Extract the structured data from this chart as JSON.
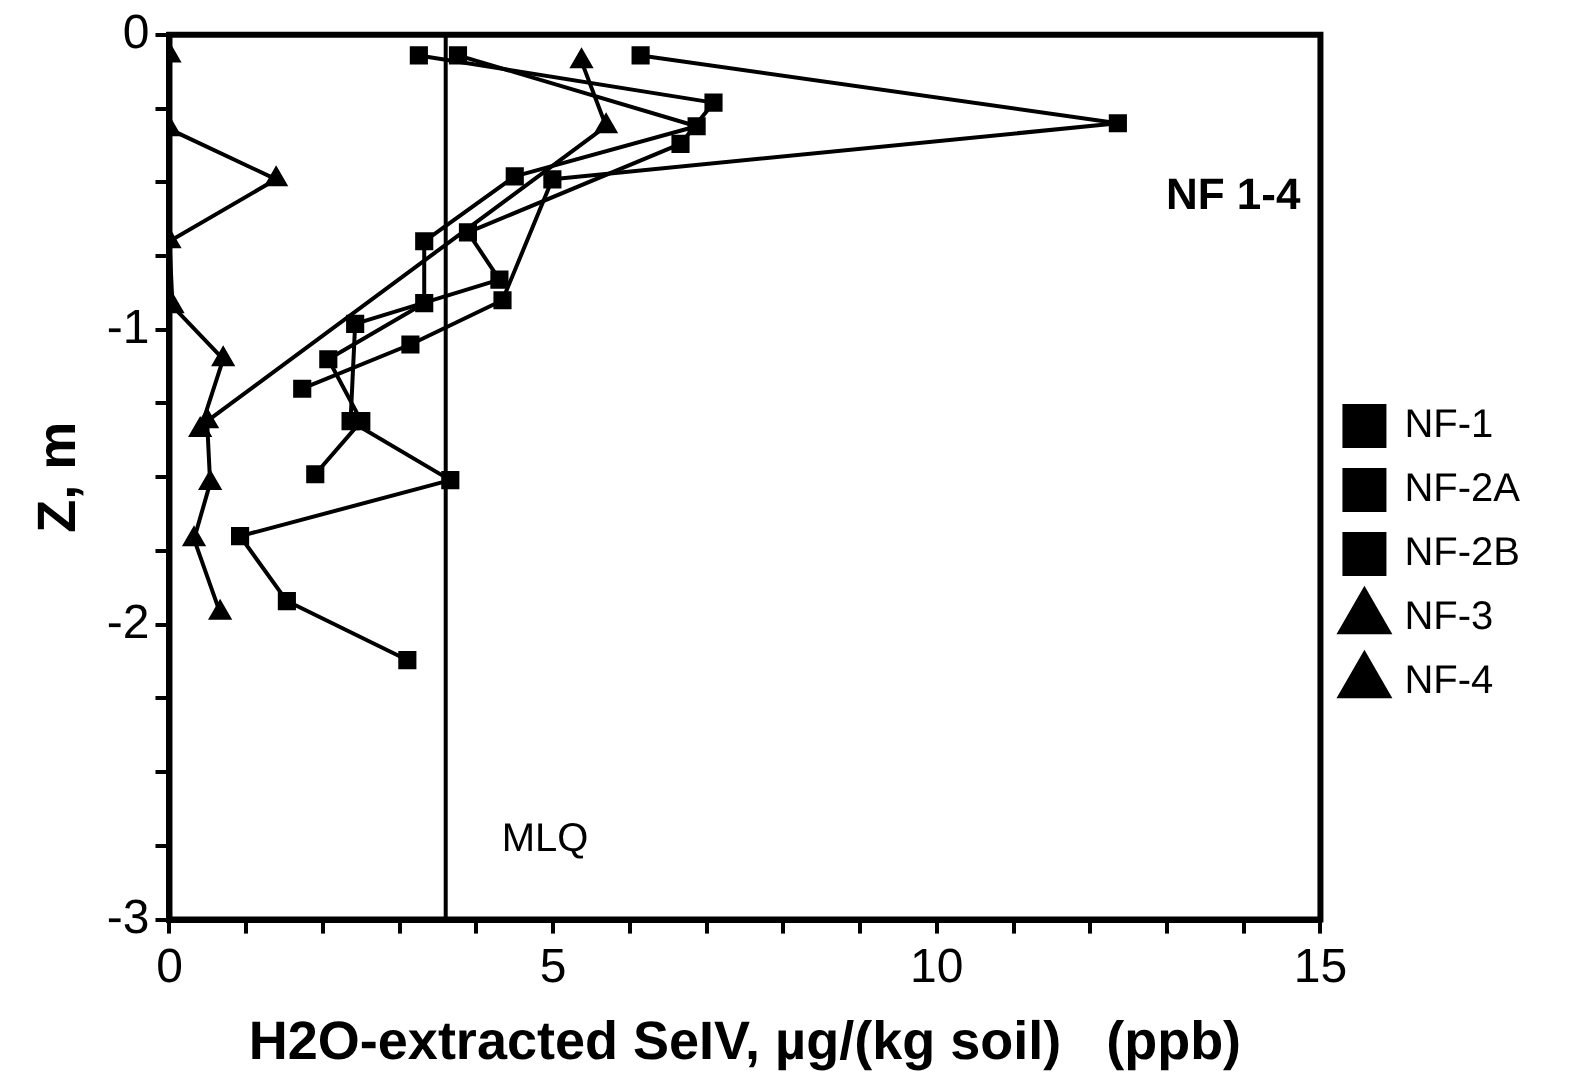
{
  "chart_data": {
    "type": "line",
    "xlabel": "H2O-extracted SeIV, µg/(kg soil)   (ppb)",
    "ylabel": "Z, m",
    "annotations": [
      "NF 1-4"
    ],
    "xlim": [
      0,
      15
    ],
    "xticks": [
      0,
      {
        "value": 1,
        "label": null
      },
      {
        "value": 2,
        "label": null
      },
      {
        "value": 3,
        "label": null
      },
      {
        "value": 4,
        "label": null
      },
      5,
      {
        "value": 6,
        "label": null
      },
      {
        "value": 7,
        "label": null
      },
      {
        "value": 8,
        "label": null
      },
      {
        "value": 9,
        "label": null
      },
      10,
      {
        "value": 11,
        "label": null
      },
      {
        "value": 12,
        "label": null
      },
      {
        "value": 13,
        "label": null
      },
      {
        "value": 14,
        "label": null
      },
      15
    ],
    "ylim": [
      -3,
      0
    ],
    "yticks": [
      -3,
      {
        "value": -2.75,
        "label": null
      },
      {
        "value": -2.5,
        "label": null
      },
      {
        "value": -2.25,
        "label": null
      },
      -2,
      {
        "value": -1.75,
        "label": null
      },
      {
        "value": -1.5,
        "label": null
      },
      {
        "value": -1.25,
        "label": null
      },
      -1,
      {
        "value": -0.75,
        "label": null
      },
      {
        "value": -0.5,
        "label": null
      },
      {
        "value": -0.25,
        "label": null
      },
      0
    ],
    "grid": false,
    "legend": "right",
    "line_style": "solid",
    "ref_lines": [
      {
        "axis": "x",
        "value": 3.6,
        "label": "MLQ",
        "color": "#000000"
      }
    ],
    "series": [
      {
        "name": "NF-1",
        "color": "#000000",
        "marker": "square",
        "x": [
          3.25,
          7.09,
          6.66,
          3.89,
          4.3,
          2.42,
          2.36,
          3.66,
          0.92,
          1.53,
          3.1
        ],
        "values": [
          -0.07,
          -0.23,
          -0.37,
          -0.67,
          -0.83,
          -0.98,
          -1.31,
          -1.51,
          -1.7,
          -1.92,
          -2.12
        ]
      },
      {
        "name": "NF-2A",
        "color": "#000000",
        "marker": "square",
        "x": [
          6.14,
          12.36,
          4.99,
          4.34,
          3.14,
          1.73
        ],
        "values": [
          -0.07,
          -0.3,
          -0.49,
          -0.9,
          -1.05,
          -1.2
        ]
      },
      {
        "name": "NF-2B",
        "color": "#000000",
        "marker": "square",
        "x": [
          3.76,
          6.87,
          4.5,
          3.32,
          3.32,
          2.07,
          2.5,
          1.9
        ],
        "values": [
          -0.07,
          -0.31,
          -0.48,
          -0.7,
          -0.91,
          -1.1,
          -1.31,
          -1.49
        ]
      },
      {
        "name": "NF-3",
        "color": "#000000",
        "marker": "triangle",
        "x": [
          5.37,
          5.69,
          0.49,
          0.53,
          0.32,
          0.66
        ],
        "values": [
          -0.09,
          -0.31,
          -1.31,
          -1.52,
          -1.71,
          -1.96
        ]
      },
      {
        "name": "NF-4",
        "color": "#000000",
        "marker": "triangle",
        "x": [
          0,
          0,
          1.39,
          0,
          0.04,
          0.7,
          0.4
        ],
        "values": [
          -0.07,
          -0.32,
          -0.49,
          -0.7,
          -0.92,
          -1.1,
          -1.34
        ]
      }
    ]
  }
}
